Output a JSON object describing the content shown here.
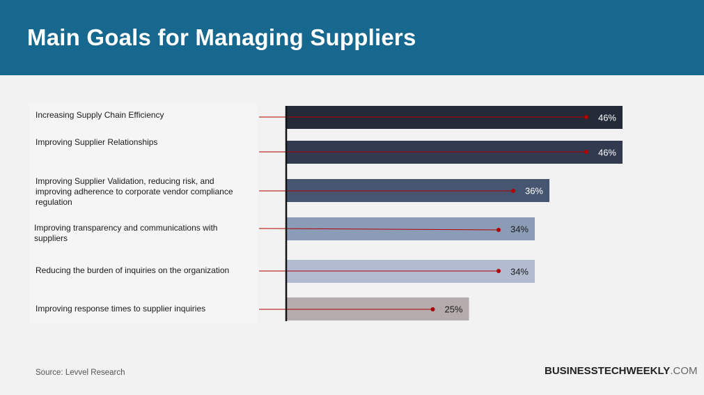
{
  "header": {
    "title": "Main Goals for Managing Suppliers"
  },
  "chart_data": {
    "type": "bar",
    "orientation": "horizontal",
    "title": "Main Goals for Managing Suppliers",
    "categories": [
      "Increasing Supply Chain Efficiency",
      "Improving Supplier Relationships",
      "Improving Supplier Validation, reducing risk, and improving adherence to corporate vendor compliance regulation",
      "Improving transparency and communications with suppliers",
      "Reducing the burden of inquiries on the organization",
      "Improving response times to supplier inquiries"
    ],
    "values": [
      46,
      46,
      36,
      34,
      34,
      25
    ],
    "value_labels": [
      "46%",
      "46%",
      "36%",
      "34%",
      "34%",
      "25%"
    ],
    "colors": [
      "#232a38",
      "#313a4f",
      "#465670",
      "#8b9cb7",
      "#b2bbd0",
      "#b4acac"
    ],
    "label_colors": [
      "#ffffff",
      "#ffffff",
      "#ffffff",
      "#1a1a1a",
      "#1a1a1a",
      "#1a1a1a"
    ],
    "leader_color": "#b00000",
    "xlim": [
      0,
      46
    ],
    "grid": false,
    "legend": "none"
  },
  "footer": {
    "source": "Source: Levvel Research",
    "brand_bold": "BUSINESSTECHWEEKLY",
    "brand_domain": ".COM"
  }
}
